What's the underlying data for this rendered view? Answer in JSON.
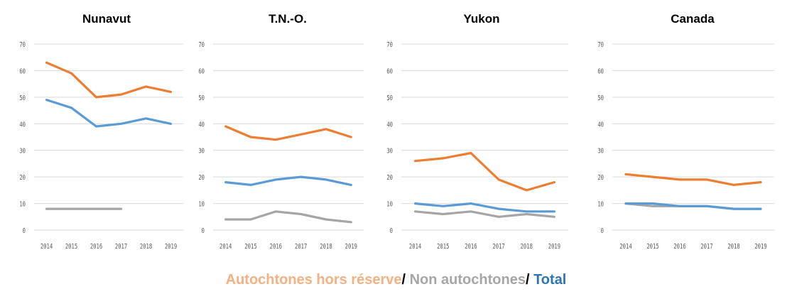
{
  "colors": {
    "autochtones": "#ED7D31",
    "non_autochtones": "#A5A5A5",
    "total": "#5B9BD5",
    "grid": "#D9D9D9",
    "axis_text": "#595959"
  },
  "legend": {
    "autochtones_label": "Autochtones hors réserve",
    "non_autochtones_label": "Non autochtones",
    "total_label": "Total",
    "separator": "/ "
  },
  "chart_data": [
    {
      "type": "line",
      "title": "Nunavut",
      "x": [
        "2014",
        "2015",
        "2016",
        "2017",
        "2018",
        "2019"
      ],
      "yticks": [
        0,
        10,
        20,
        30,
        40,
        50,
        60,
        70
      ],
      "ylim": [
        0,
        70
      ],
      "series": [
        {
          "key": "autochtones",
          "values": [
            63,
            59,
            50,
            51,
            54,
            52
          ]
        },
        {
          "key": "total",
          "values": [
            49,
            46,
            39,
            40,
            42,
            40
          ]
        },
        {
          "key": "non_autochtones",
          "values": [
            8,
            8,
            8,
            8,
            null,
            null
          ]
        }
      ]
    },
    {
      "type": "line",
      "title": "T.N.-O.",
      "x": [
        "2014",
        "2015",
        "2016",
        "2017",
        "2018",
        "2019"
      ],
      "yticks": [
        0,
        10,
        20,
        30,
        40,
        50,
        60,
        70
      ],
      "ylim": [
        0,
        70
      ],
      "series": [
        {
          "key": "autochtones",
          "values": [
            39,
            35,
            34,
            36,
            38,
            35
          ]
        },
        {
          "key": "total",
          "values": [
            18,
            17,
            19,
            20,
            19,
            17
          ]
        },
        {
          "key": "non_autochtones",
          "values": [
            4,
            4,
            7,
            6,
            4,
            3
          ]
        }
      ]
    },
    {
      "type": "line",
      "title": "Yukon",
      "x": [
        "2014",
        "2015",
        "2016",
        "2017",
        "2018",
        "2019"
      ],
      "yticks": [
        0,
        10,
        20,
        30,
        40,
        50,
        60,
        70
      ],
      "ylim": [
        0,
        70
      ],
      "series": [
        {
          "key": "autochtones",
          "values": [
            26,
            27,
            29,
            19,
            15,
            18
          ]
        },
        {
          "key": "total",
          "values": [
            10,
            9,
            10,
            8,
            7,
            7
          ]
        },
        {
          "key": "non_autochtones",
          "values": [
            7,
            6,
            7,
            5,
            6,
            5
          ]
        }
      ]
    },
    {
      "type": "line",
      "title": "Canada",
      "x": [
        "2014",
        "2015",
        "2016",
        "2017",
        "2018",
        "2019"
      ],
      "yticks": [
        0,
        10,
        20,
        30,
        40,
        50,
        60,
        70
      ],
      "ylim": [
        0,
        70
      ],
      "series": [
        {
          "key": "autochtones",
          "values": [
            21,
            20,
            19,
            19,
            17,
            18
          ]
        },
        {
          "key": "total",
          "values": [
            10,
            10,
            9,
            9,
            8,
            8
          ]
        },
        {
          "key": "non_autochtones",
          "values": [
            10,
            9,
            9,
            9,
            8,
            8
          ]
        }
      ]
    }
  ]
}
